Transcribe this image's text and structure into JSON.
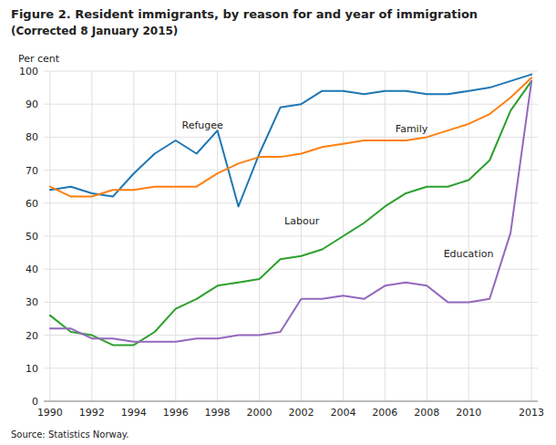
{
  "chart_data": {
    "type": "line",
    "title": "Figure 2. Resident immigrants, by reason for and year of immigration",
    "subtitle": "(Corrected 8 January 2015)",
    "y_label": "Per cent",
    "source": "Source: Statistics Norway.",
    "x": [
      1990,
      1991,
      1992,
      1993,
      1994,
      1995,
      1996,
      1997,
      1998,
      1999,
      2000,
      2001,
      2002,
      2003,
      2004,
      2005,
      2006,
      2007,
      2008,
      2009,
      2010,
      2011,
      2012,
      2013
    ],
    "series": [
      {
        "color": "#1f77b4",
        "values": [
          64,
          65,
          63,
          62,
          69,
          75,
          79,
          75,
          82,
          59,
          75,
          89,
          90,
          94,
          94,
          93,
          94,
          94,
          93,
          93,
          94,
          95,
          97,
          99
        ]
      },
      {
        "color": "#ff7f0e",
        "values": [
          65,
          62,
          62,
          64,
          64,
          65,
          65,
          65,
          69,
          72,
          74,
          74,
          75,
          77,
          78,
          79,
          79,
          79,
          80,
          82,
          84,
          87,
          92,
          98
        ]
      },
      {
        "color": "#2ca02c",
        "values": [
          26,
          21,
          20,
          17,
          17,
          21,
          28,
          31,
          35,
          36,
          37,
          43,
          44,
          46,
          50,
          54,
          59,
          63,
          65,
          65,
          67,
          73,
          88,
          97
        ]
      },
      {
        "color": "#9467bd",
        "values": [
          22,
          22,
          19,
          19,
          18,
          18,
          18,
          19,
          19,
          20,
          20,
          21,
          31,
          31,
          32,
          31,
          35,
          36,
          35,
          30,
          30,
          31,
          51,
          97
        ]
      }
    ],
    "annotations": [
      {
        "text": "Refugee",
        "x": 1996.3,
        "y": 82
      },
      {
        "text": "Family",
        "x": 2006.5,
        "y": 81
      },
      {
        "text": "Labour",
        "x": 2001.2,
        "y": 53
      },
      {
        "text": "Education",
        "x": 2008.8,
        "y": 43
      }
    ],
    "xlim": [
      1989.7,
      2013.3
    ],
    "xticks": [
      1990,
      1992,
      1994,
      1996,
      1998,
      2000,
      2002,
      2004,
      2006,
      2008,
      2010,
      2013
    ],
    "ylim": [
      0,
      100
    ],
    "yticks": [
      0,
      10,
      20,
      30,
      40,
      50,
      60,
      70,
      80,
      90,
      100
    ],
    "grid": true
  }
}
